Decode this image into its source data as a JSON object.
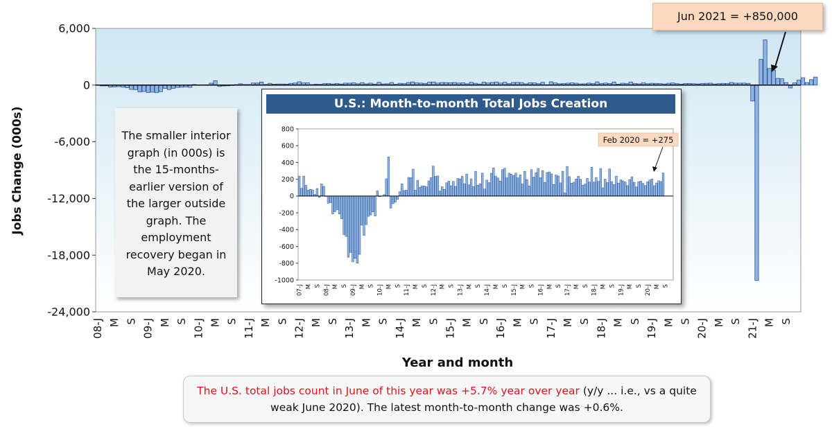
{
  "colors": {
    "bar_fill": "#8eb4e3",
    "bar_stroke": "#2f528f",
    "plot_bg_top": "#cfe7f3",
    "plot_bg_bottom": "#ffffff",
    "title_bar": "#2e5b8c",
    "callout_bg": "#fbd9c0",
    "highlight_text": "#e3121b"
  },
  "note": {
    "text": "The smaller interior graph (in 000s) is the 15-months-earlier version of the larger outside graph. The employment recovery began in May 2020."
  },
  "footnote": {
    "highlight": "The U.S. total jobs count in June of this year was +5.7% year over year",
    "rest": " (y/y ... i.e., vs a quite weak June 2020). The latest month-to-month change was +0.6%."
  },
  "chart_data": [
    {
      "type": "bar",
      "title": "",
      "xlabel": "Year and month",
      "ylabel": "Jobs Change (000s)",
      "ylim": [
        -24000,
        6000
      ],
      "yticks": [
        "6,000",
        "0",
        "-6,000",
        "-12,000",
        "-18,000",
        "-24,000"
      ],
      "x_tick_labels": [
        "08-J",
        "M",
        "S",
        "09-J",
        "M",
        "S",
        "10-J",
        "M",
        "S",
        "11-J",
        "M",
        "S",
        "12-J",
        "M",
        "S",
        "13-J",
        "M",
        "S",
        "14-J",
        "M",
        "S",
        "15-J",
        "M",
        "S",
        "16-J",
        "M",
        "S",
        "17-J",
        "M",
        "S",
        "18-J",
        "M",
        "S",
        "19-J",
        "M",
        "S",
        "20-J",
        "M",
        "S",
        "21-J",
        "M",
        "S"
      ],
      "annotation": "Jun 2021 = +850,000",
      "series": [
        {
          "start": "2008-01",
          "end": "2021-06",
          "values": [
            -5,
            -86,
            -79,
            -214,
            -186,
            -162,
            -213,
            -270,
            -459,
            -481,
            -729,
            -673,
            -784,
            -743,
            -800,
            -695,
            -347,
            -470,
            -340,
            -242,
            -225,
            -188,
            -238,
            62,
            -7,
            0,
            17,
            206,
            466,
            -143,
            -91,
            -72,
            -41,
            52,
            147,
            66,
            69,
            222,
            218,
            321,
            70,
            188,
            103,
            121,
            120,
            110,
            181,
            219,
            358,
            234,
            240,
            61,
            111,
            79,
            158,
            179,
            123,
            175,
            116,
            209,
            205,
            235,
            147,
            262,
            134,
            205,
            113,
            294,
            129,
            147,
            274,
            84,
            190,
            160,
            272,
            335,
            237,
            216,
            179,
            315,
            331,
            217,
            273,
            261,
            245,
            273,
            217,
            252,
            144,
            295,
            195,
            120,
            315,
            226,
            279,
            329,
            218,
            303,
            163,
            280,
            288,
            264,
            137,
            251,
            239,
            157,
            295,
            37,
            353,
            231,
            153,
            165,
            203,
            236,
            201,
            130,
            143,
            211,
            168,
            343,
            166,
            221,
            175,
            329,
            99,
            202,
            160,
            324,
            172,
            136,
            237,
            152,
            193,
            181,
            168,
            125,
            195,
            229,
            163,
            109,
            170,
            177,
            151,
            126,
            171,
            191,
            204,
            124,
            156,
            183,
            173,
            278,
            208,
            206,
            214,
            184,
            -1683,
            -20679,
            2725,
            4781,
            1761,
            1583,
            716,
            680,
            264,
            -306,
            233,
            536,
            785,
            269,
            583,
            850
          ]
        }
      ]
    },
    {
      "type": "bar",
      "title": "U.S.: Month-to-month Total Jobs Creation",
      "xlabel": "",
      "ylabel": "",
      "ylim": [
        -1000,
        800
      ],
      "yticks": [
        "800",
        "600",
        "400",
        "200",
        "0",
        "-200",
        "-400",
        "-600",
        "-800",
        "-1000"
      ],
      "x_tick_labels": [
        "07-J",
        "M",
        "S",
        "08-J",
        "M",
        "S",
        "09-J",
        "M",
        "S",
        "10-J",
        "M",
        "S",
        "11-J",
        "M",
        "S",
        "12-J",
        "M",
        "S",
        "13-J",
        "M",
        "S",
        "14-J",
        "M",
        "S",
        "15-J",
        "M",
        "S",
        "16-J",
        "M",
        "S",
        "17-J",
        "M",
        "S",
        "18-J",
        "M",
        "S",
        "19-J",
        "M",
        "S",
        "20-J",
        "M",
        "S"
      ],
      "annotation": "Feb 2020 = +275",
      "series": [
        {
          "start": "2007-01",
          "end": "2020-02",
          "values": [
            238,
            93,
            238,
            127,
            70,
            79,
            73,
            20,
            90,
            -15,
            145,
            115,
            -5,
            -86,
            -79,
            -214,
            -186,
            -162,
            -213,
            -270,
            -459,
            -481,
            -729,
            -673,
            -784,
            -743,
            -800,
            -695,
            -347,
            -470,
            -340,
            -242,
            -225,
            -188,
            -238,
            62,
            -7,
            0,
            17,
            206,
            466,
            -143,
            -91,
            -72,
            -41,
            52,
            147,
            66,
            69,
            222,
            218,
            321,
            70,
            188,
            103,
            121,
            120,
            110,
            181,
            219,
            358,
            234,
            240,
            61,
            111,
            79,
            158,
            179,
            123,
            175,
            116,
            209,
            205,
            235,
            147,
            262,
            134,
            205,
            113,
            294,
            129,
            147,
            274,
            84,
            190,
            160,
            272,
            335,
            237,
            216,
            179,
            315,
            331,
            217,
            273,
            261,
            245,
            273,
            217,
            252,
            144,
            295,
            195,
            120,
            315,
            226,
            279,
            329,
            218,
            303,
            163,
            280,
            288,
            264,
            137,
            251,
            239,
            157,
            295,
            37,
            353,
            231,
            153,
            165,
            203,
            236,
            201,
            130,
            143,
            211,
            168,
            343,
            166,
            221,
            175,
            329,
            99,
            202,
            160,
            324,
            172,
            136,
            237,
            152,
            193,
            181,
            168,
            125,
            195,
            229,
            163,
            109,
            170,
            177,
            151,
            126,
            171,
            191,
            204,
            124,
            156,
            183,
            173,
            275
          ]
        }
      ]
    }
  ]
}
